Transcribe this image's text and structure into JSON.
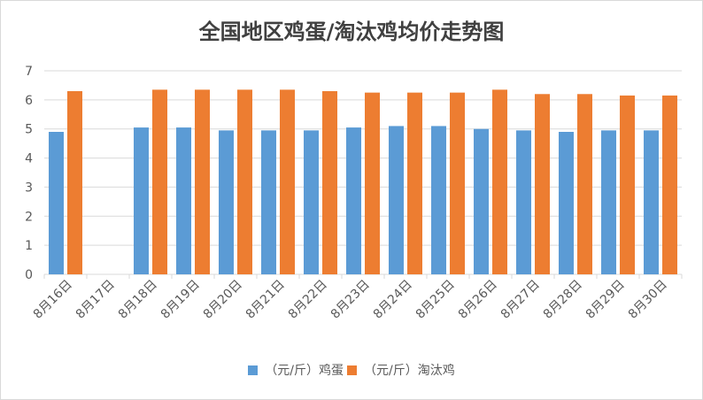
{
  "chart_data": {
    "type": "bar",
    "title": "全国地区鸡蛋/淘汰鸡均价走势图",
    "categories": [
      "8月16日",
      "8月17日",
      "8月18日",
      "8月19日",
      "8月20日",
      "8月21日",
      "8月22日",
      "8月23日",
      "8月24日",
      "8月25日",
      "8月26日",
      "8月27日",
      "8月28日",
      "8月29日",
      "8月30日"
    ],
    "series": [
      {
        "name": "（元/斤）鸡蛋",
        "color": "#5b9bd5",
        "values": [
          4.9,
          null,
          5.05,
          5.05,
          4.95,
          4.95,
          4.95,
          5.05,
          5.1,
          5.1,
          5.0,
          4.95,
          4.9,
          4.95,
          4.95
        ]
      },
      {
        "name": "（元/斤）淘汰鸡",
        "color": "#ed7d31",
        "values": [
          6.3,
          null,
          6.35,
          6.35,
          6.35,
          6.35,
          6.3,
          6.25,
          6.25,
          6.25,
          6.35,
          6.2,
          6.2,
          6.15,
          6.15
        ]
      }
    ],
    "ylim": [
      0,
      7
    ],
    "yticks": [
      0,
      1,
      2,
      3,
      4,
      5,
      6,
      7
    ],
    "grid": true,
    "legend": "bottom"
  }
}
